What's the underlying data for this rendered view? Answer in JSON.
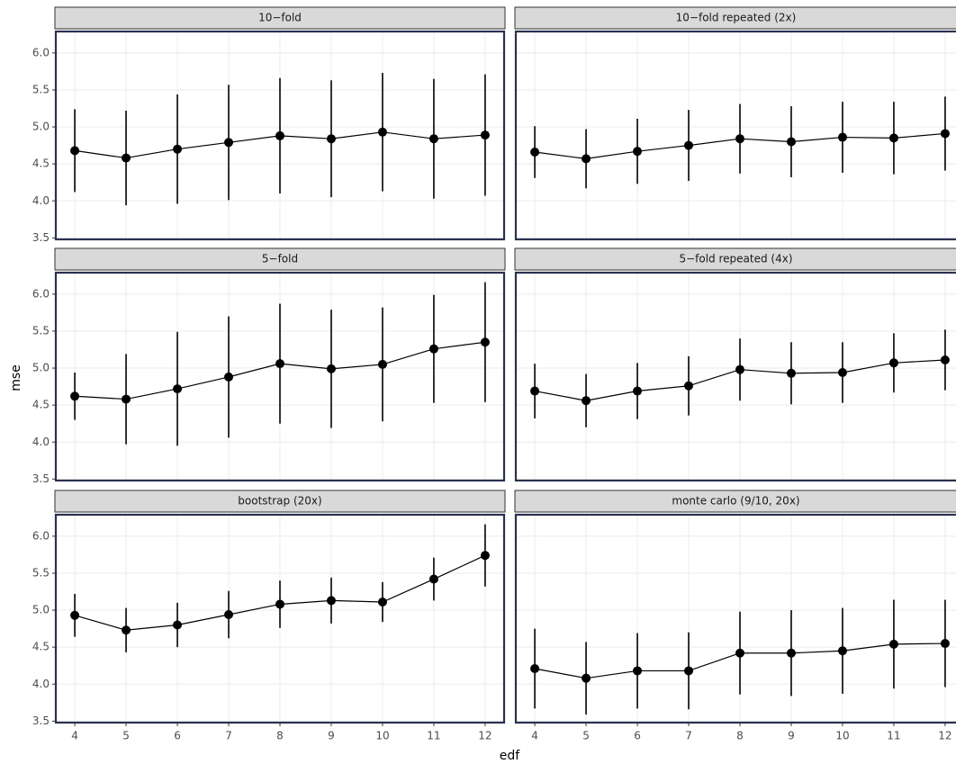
{
  "chart_data": {
    "type": "errorbar-line",
    "x_label": "edf",
    "y_label": "mse",
    "x": [
      4,
      5,
      6,
      7,
      8,
      9,
      10,
      11,
      12
    ],
    "xlim": [
      3.63,
      12.37
    ],
    "xticks": [
      4,
      5,
      6,
      7,
      8,
      9,
      10,
      11,
      12
    ],
    "ylim": [
      3.48,
      6.29
    ],
    "yticks": [
      3.5,
      {
        "value": 4,
        "label": "4.0"
      },
      4.5,
      {
        "value": 5,
        "label": "5.0"
      },
      5.5,
      {
        "value": 6,
        "label": "6.0"
      }
    ],
    "grid": true,
    "color": "#000000",
    "panels": [
      {
        "title": "10−fold",
        "values": [
          4.68,
          4.58,
          4.7,
          4.79,
          4.88,
          4.84,
          4.93,
          4.84,
          4.89
        ],
        "errors": [
          0.56,
          0.64,
          0.74,
          0.78,
          0.78,
          0.79,
          0.8,
          0.81,
          0.82
        ]
      },
      {
        "title": "10−fold repeated (2x)",
        "values": [
          4.66,
          4.57,
          4.67,
          4.75,
          4.84,
          4.8,
          4.86,
          4.85,
          4.91
        ],
        "errors": [
          0.35,
          0.4,
          0.44,
          0.48,
          0.47,
          0.48,
          0.48,
          0.49,
          0.5
        ]
      },
      {
        "title": "5−fold",
        "values": [
          4.62,
          4.58,
          4.72,
          4.88,
          5.06,
          4.99,
          5.05,
          5.26,
          5.35
        ],
        "errors": [
          0.32,
          0.61,
          0.77,
          0.82,
          0.81,
          0.8,
          0.77,
          0.73,
          0.81
        ]
      },
      {
        "title": "5−fold repeated (4x)",
        "values": [
          4.69,
          4.56,
          4.69,
          4.76,
          4.98,
          4.93,
          4.94,
          5.07,
          5.11
        ],
        "errors": [
          0.37,
          0.36,
          0.38,
          0.4,
          0.42,
          0.42,
          0.41,
          0.4,
          0.41
        ]
      },
      {
        "title": "bootstrap (20x)",
        "values": [
          4.93,
          4.73,
          4.8,
          4.94,
          5.08,
          5.13,
          5.11,
          5.42,
          5.74
        ],
        "errors": [
          0.29,
          0.3,
          0.3,
          0.32,
          0.32,
          0.31,
          0.27,
          0.29,
          0.42
        ]
      },
      {
        "title": "monte carlo (9/10, 20x)",
        "values": [
          4.21,
          4.08,
          4.18,
          4.18,
          4.42,
          4.42,
          4.45,
          4.54,
          4.55
        ],
        "errors": [
          0.54,
          0.49,
          0.51,
          0.52,
          0.56,
          0.58,
          0.58,
          0.6,
          0.59
        ]
      }
    ]
  }
}
